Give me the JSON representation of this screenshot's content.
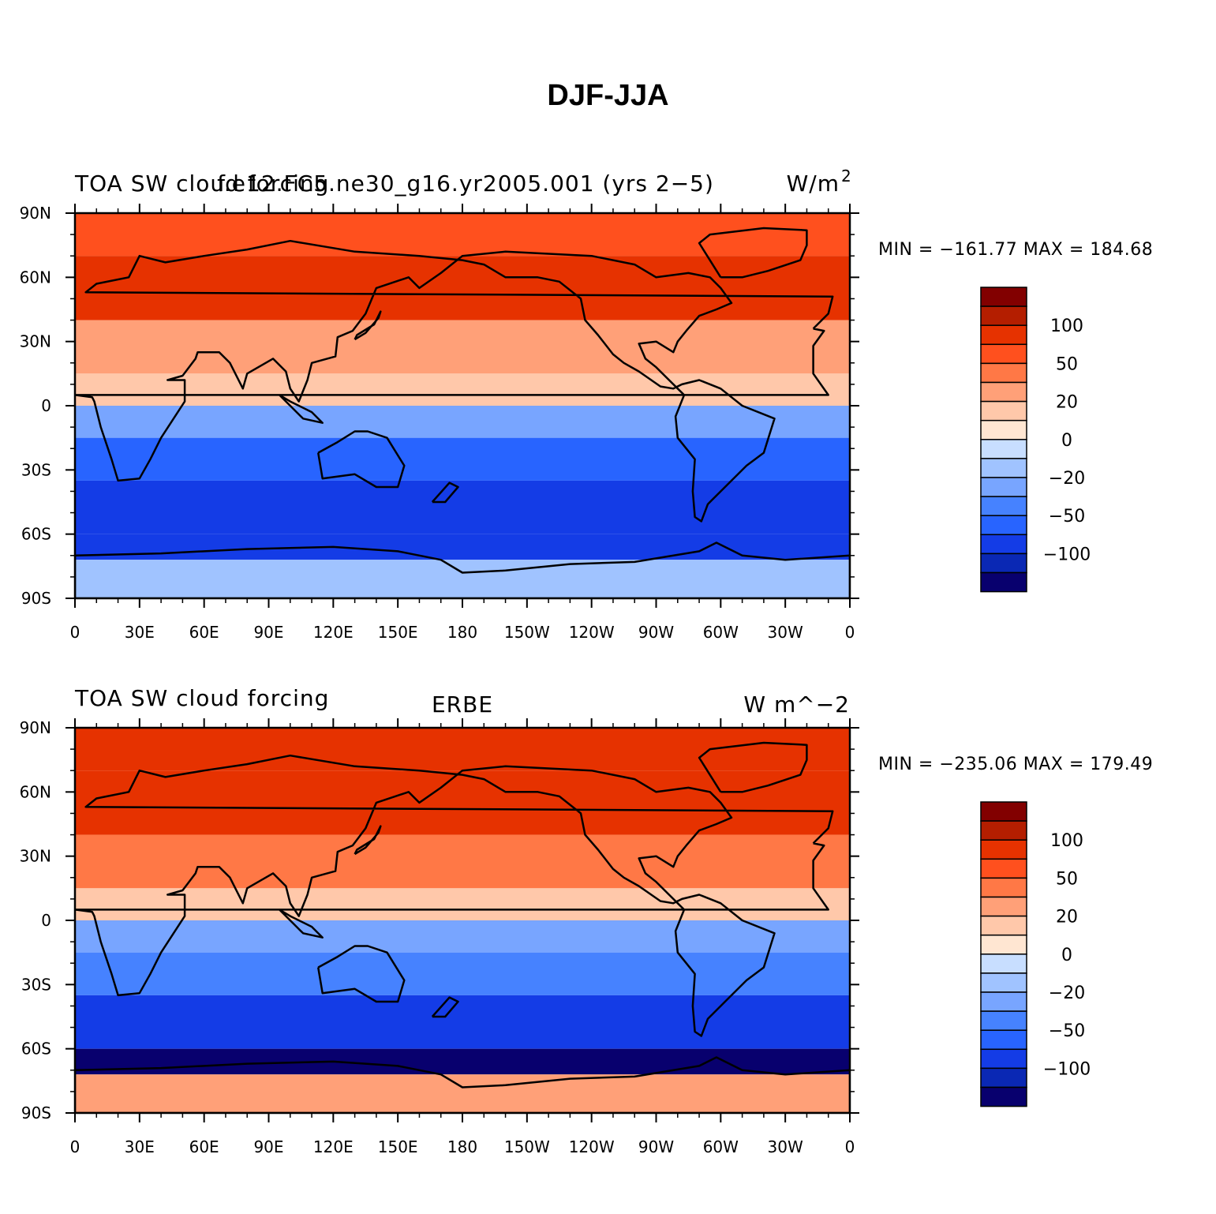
{
  "title": "DJF-JJA",
  "colors": [
    "#08006e",
    "#0a28b4",
    "#143ce6",
    "#2864ff",
    "#4682ff",
    "#78a5ff",
    "#a0c3ff",
    "#c8deff",
    "#ffe6d2",
    "#ffc8aa",
    "#ffa078",
    "#ff7846",
    "#ff501e",
    "#e63200",
    "#b41e00",
    "#820000"
  ],
  "colorbar_labels": [
    "100",
    "50",
    "20",
    "0",
    "−20",
    "−50",
    "−100"
  ],
  "x_ticks": [
    "0",
    "30E",
    "60E",
    "90E",
    "120E",
    "150E",
    "180",
    "150W",
    "120W",
    "90W",
    "60W",
    "30W",
    "0"
  ],
  "y_ticks": [
    "90N",
    "60N",
    "30N",
    "0",
    "30S",
    "60S",
    "90S"
  ],
  "panels": [
    {
      "left_text": "TOA SW cloud forcing",
      "center_text": "f.e12.FC5.ne30_g16.yr2005.001 (yrs 2−5)",
      "units": "W/m",
      "units_sup": "2",
      "stats": "MIN = −161.77  MAX = 184.68"
    },
    {
      "left_text": "TOA SW cloud forcing",
      "center_text": "ERBE",
      "units": "W m^−2",
      "units_sup": "",
      "stats": "MIN = −235.06  MAX = 179.49"
    }
  ],
  "chart_data": [
    {
      "type": "heatmap",
      "title": "DJF-JJA",
      "x_ticks": [
        "0",
        "30E",
        "60E",
        "90E",
        "120E",
        "150E",
        "180",
        "150W",
        "120W",
        "90W",
        "60W",
        "30W",
        "0"
      ],
      "y_ticks": [
        "90N",
        "60N",
        "30N",
        "0",
        "30S",
        "60S",
        "90S"
      ],
      "xlim": [
        0,
        360
      ],
      "ylim": [
        -90,
        90
      ],
      "lat_bands": [
        {
          "lat": [
            70,
            90
          ],
          "value": 60
        },
        {
          "lat": [
            40,
            70
          ],
          "value": 80
        },
        {
          "lat": [
            15,
            40
          ],
          "value": 30
        },
        {
          "lat": [
            0,
            15
          ],
          "value": 15
        },
        {
          "lat": [
            -15,
            0
          ],
          "value": -20
        },
        {
          "lat": [
            -35,
            -15
          ],
          "value": -50
        },
        {
          "lat": [
            -60,
            -35
          ],
          "value": -70
        },
        {
          "lat": [
            -72,
            -60
          ],
          "value": -90
        },
        {
          "lat": [
            -90,
            -72
          ],
          "value": -10
        }
      ],
      "levels": [
        -100,
        -50,
        -20,
        0,
        20,
        50,
        100
      ],
      "min": -161.77,
      "max": 184.68
    },
    {
      "type": "heatmap",
      "title": "ERBE",
      "x_ticks": [
        "0",
        "30E",
        "60E",
        "90E",
        "120E",
        "150E",
        "180",
        "150W",
        "120W",
        "90W",
        "60W",
        "30W",
        "0"
      ],
      "y_ticks": [
        "90N",
        "60N",
        "30N",
        "0",
        "30S",
        "60S",
        "90S"
      ],
      "xlim": [
        0,
        360
      ],
      "ylim": [
        -90,
        90
      ],
      "lat_bands": [
        {
          "lat": [
            70,
            90
          ],
          "value": 80
        },
        {
          "lat": [
            40,
            70
          ],
          "value": 90
        },
        {
          "lat": [
            15,
            40
          ],
          "value": 40
        },
        {
          "lat": [
            0,
            15
          ],
          "value": 20
        },
        {
          "lat": [
            -15,
            0
          ],
          "value": -20
        },
        {
          "lat": [
            -35,
            -15
          ],
          "value": -40
        },
        {
          "lat": [
            -60,
            -35
          ],
          "value": -90
        },
        {
          "lat": [
            -72,
            -60
          ],
          "value": -150
        },
        {
          "lat": [
            -90,
            -72
          ],
          "value": 30
        }
      ],
      "levels": [
        -100,
        -50,
        -20,
        0,
        20,
        50,
        100
      ],
      "min": -235.06,
      "max": 179.49
    }
  ]
}
